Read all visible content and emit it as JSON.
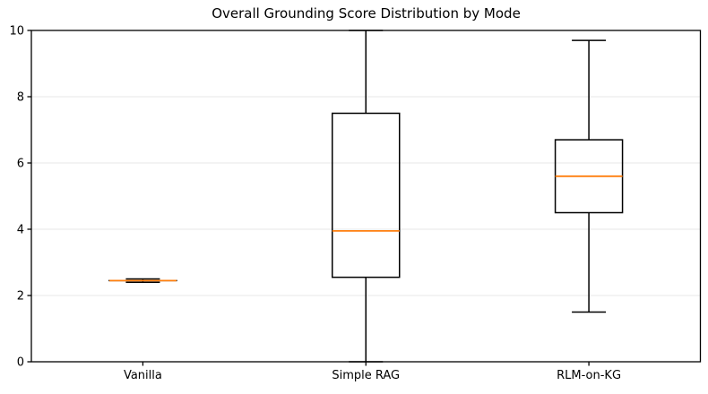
{
  "chart_data": {
    "type": "box",
    "title": "Overall Grounding Score Distribution by Mode",
    "xlabel": "",
    "ylabel": "",
    "categories": [
      "Vanilla",
      "Simple RAG",
      "RLM-on-KG"
    ],
    "series": [
      {
        "name": "Vanilla",
        "whisker_low": 2.4,
        "q1": 2.45,
        "median": 2.45,
        "q3": 2.45,
        "whisker_high": 2.5
      },
      {
        "name": "Simple RAG",
        "whisker_low": 0.0,
        "q1": 2.55,
        "median": 3.95,
        "q3": 7.5,
        "whisker_high": 10.0
      },
      {
        "name": "RLM-on-KG",
        "whisker_low": 1.5,
        "q1": 4.5,
        "median": 5.6,
        "q3": 6.7,
        "whisker_high": 9.7
      }
    ],
    "ylim": [
      0,
      10
    ],
    "yticks": [
      0,
      2,
      4,
      6,
      8,
      10
    ],
    "grid": "horizontal",
    "legend": "none",
    "colors": {
      "median": "#ff7f0e",
      "box_edge": "#000000",
      "grid": "#e7e7e7",
      "background": "#ffffff"
    }
  }
}
